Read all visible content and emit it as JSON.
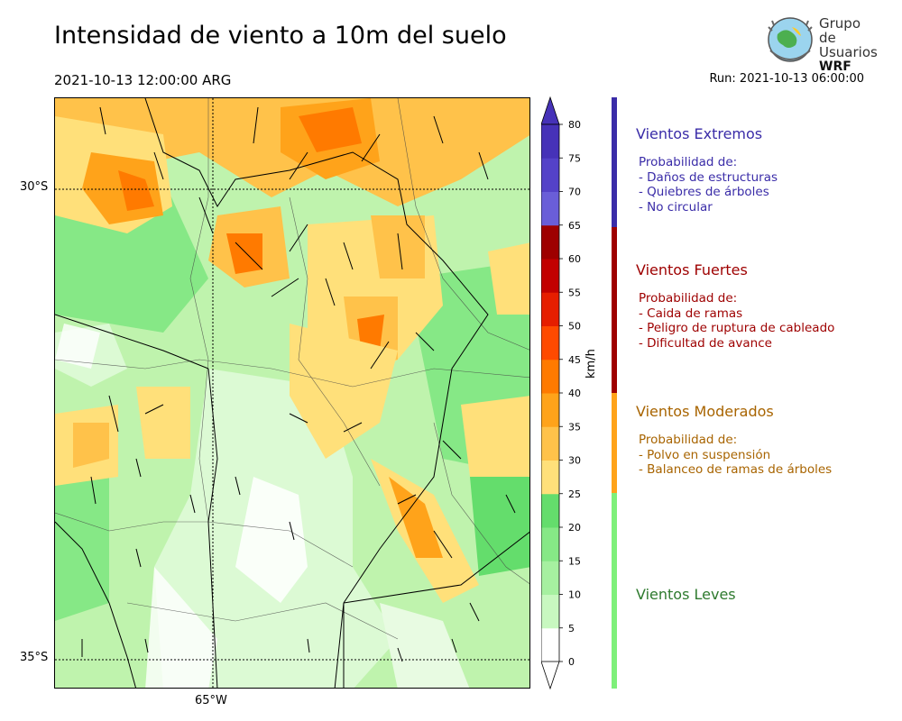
{
  "title": "Intensidad de viento a 10m del suelo",
  "valid_time": "2021-10-13 12:00:00 ARG",
  "run_time": "Run: 2021-10-13 06:00:00",
  "logo": {
    "line1": "Grupo de",
    "line2": "Usuarios",
    "line3": "WRF"
  },
  "map": {
    "lat_labels": [
      "30°S",
      "35°S"
    ],
    "lon_labels": [
      "65°W"
    ],
    "grid_style": "dotted"
  },
  "colorbar": {
    "unit": "km/h",
    "ticks": [
      "0",
      "5",
      "10",
      "15",
      "20",
      "25",
      "30",
      "35",
      "40",
      "45",
      "50",
      "55",
      "60",
      "65",
      "70",
      "75",
      "80"
    ],
    "colors": [
      "#ffffff",
      "#c8f8c0",
      "#a6f0a0",
      "#86e886",
      "#64dd6c",
      "#ffe07a",
      "#ffc24a",
      "#ffa31a",
      "#ff7a00",
      "#ff4a00",
      "#e61e00",
      "#c20000",
      "#9e0000",
      "#6a5ed8",
      "#5442c8",
      "#4632b8"
    ],
    "extend": "both"
  },
  "legend": [
    {
      "title": "Vientos Extremos",
      "color": "#3a2ca8",
      "desc": "Probabilidad de:\n- Daños de estructuras\n- Quiebres de árboles\n- No circular"
    },
    {
      "title": "Vientos Fuertes",
      "color": "#9e0000",
      "desc": "Probabilidad de:\n- Caida de ramas\n- Peligro de ruptura de cableado\n- Dificultad de avance"
    },
    {
      "title": "Vientos Moderados",
      "color": "#a86400",
      "bar_color": "#ffa31a",
      "desc": "Probabilidad de:\n- Polvo en suspensión\n- Balanceo de ramas de árboles"
    },
    {
      "title": "Vientos Leves",
      "color": "#2e7a2e",
      "bar_color": "#7ef07a",
      "desc": ""
    }
  ]
}
